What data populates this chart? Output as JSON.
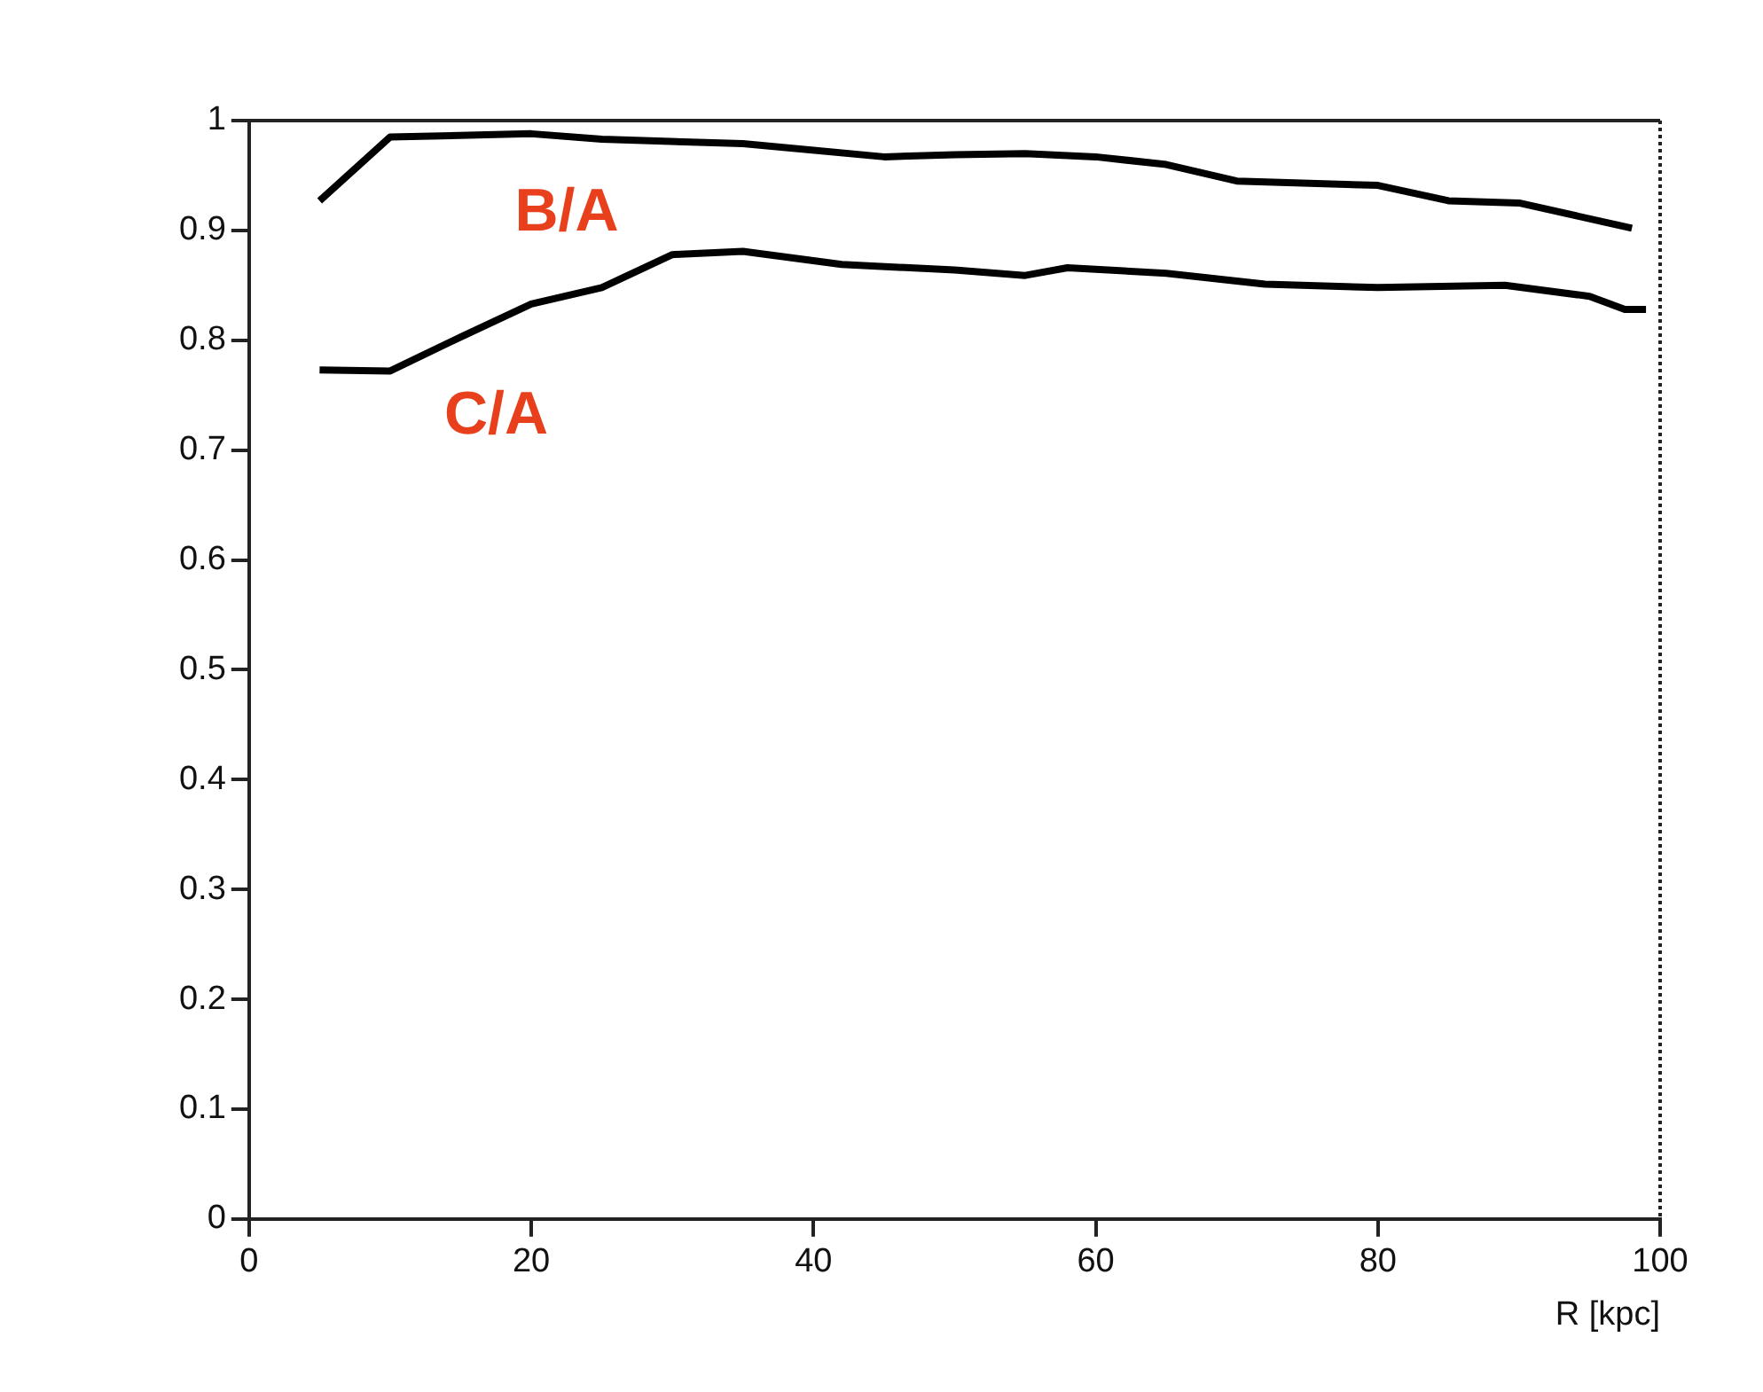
{
  "chart_data": {
    "type": "line",
    "xlabel": "R [kpc]",
    "xlim": [
      0,
      100
    ],
    "xticks": [
      0,
      20,
      40,
      60,
      80,
      100
    ],
    "ylim": [
      0,
      1
    ],
    "yticks": [
      0,
      0.1,
      0.2,
      0.3,
      0.4,
      0.5,
      0.6,
      0.7,
      0.8,
      0.9,
      1
    ],
    "grid": false,
    "legend": false,
    "marker": "none",
    "line_style": "solid",
    "series": [
      {
        "name": "B/A",
        "color": "#000000",
        "x": [
          5,
          10,
          20,
          25,
          35,
          45,
          50,
          55,
          60,
          65,
          70,
          80,
          85,
          90,
          98
        ],
        "values": [
          0.927,
          0.985,
          0.988,
          0.983,
          0.979,
          0.967,
          0.969,
          0.97,
          0.967,
          0.96,
          0.945,
          0.941,
          0.927,
          0.925,
          0.902
        ]
      },
      {
        "name": "C/A",
        "color": "#000000",
        "x": [
          5,
          10,
          15,
          20,
          25,
          30,
          35,
          42,
          50,
          55,
          58,
          65,
          72,
          80,
          89,
          95,
          97.5,
          99
        ],
        "values": [
          0.773,
          0.772,
          0.803,
          0.833,
          0.848,
          0.878,
          0.881,
          0.869,
          0.864,
          0.859,
          0.866,
          0.861,
          0.851,
          0.848,
          0.85,
          0.84,
          0.828,
          0.828
        ]
      }
    ]
  }
}
